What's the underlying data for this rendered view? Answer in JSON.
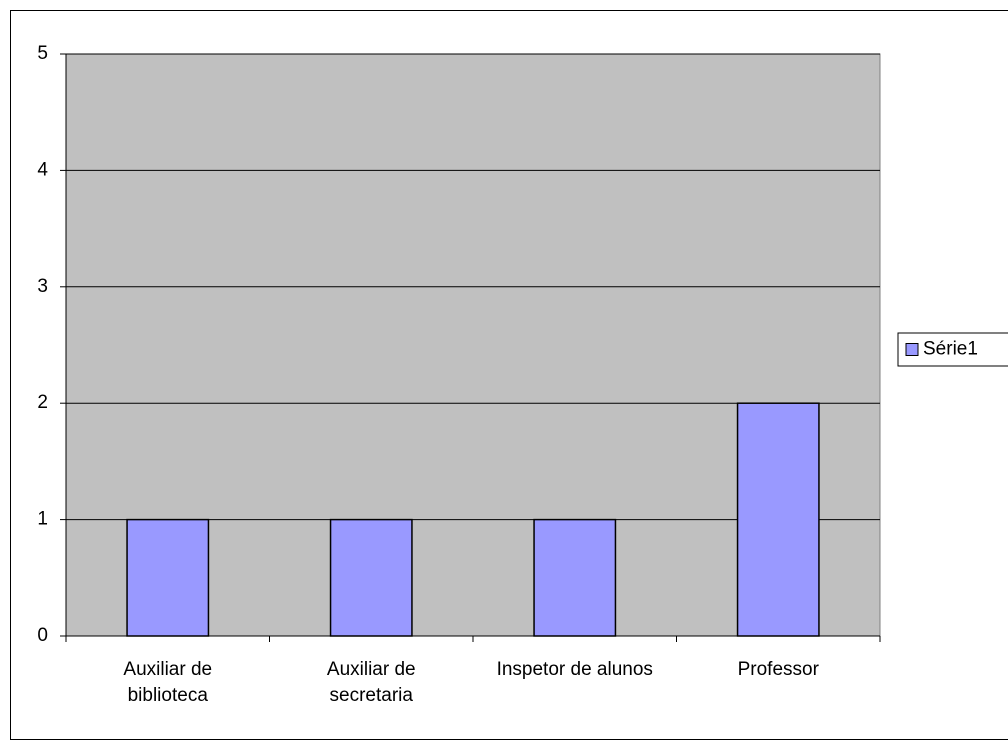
{
  "chart_data": {
    "type": "bar",
    "categories": [
      "Auxiliar de biblioteca",
      "Auxiliar de secretaria",
      "Inspetor de alunos",
      "Professor"
    ],
    "series": [
      {
        "name": "Série1",
        "color": "#9999ff",
        "values": [
          1,
          1,
          1,
          2
        ]
      }
    ],
    "ylim": [
      0,
      5
    ],
    "yticks": [
      0,
      1,
      2,
      3,
      4,
      5
    ],
    "grid": true,
    "legend": "right"
  }
}
